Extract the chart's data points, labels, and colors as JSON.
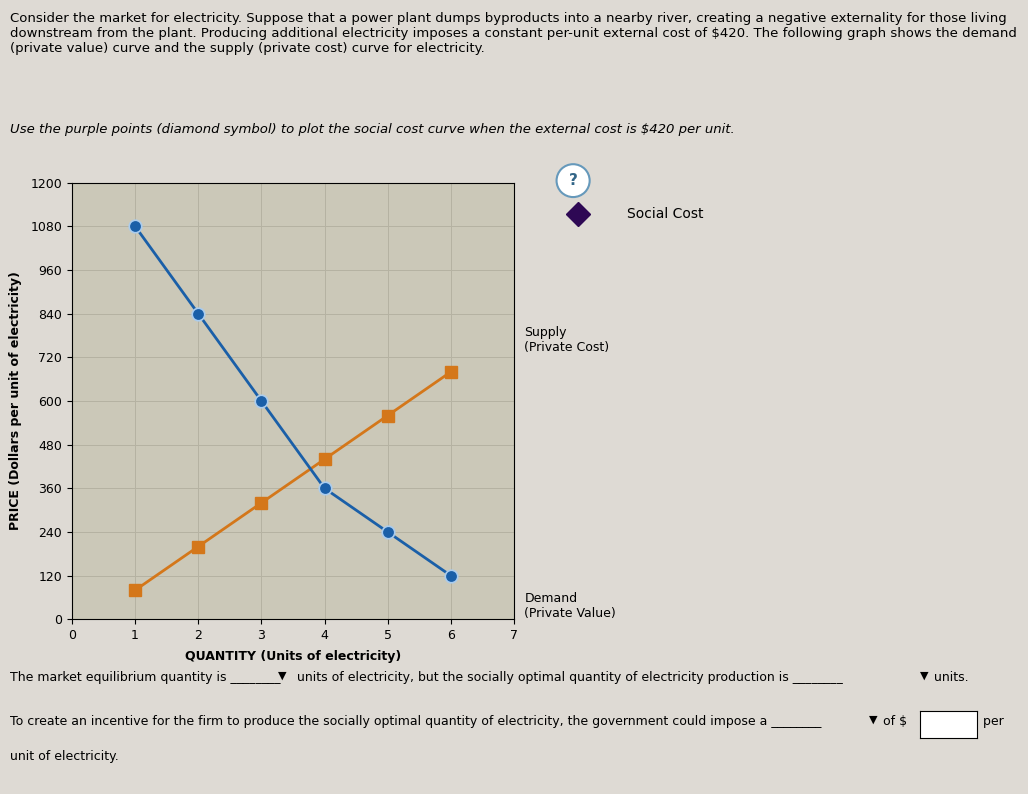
{
  "title_text": "Consider the market for electricity. Suppose that a power plant dumps byproducts into a nearby river, creating a negative externality for those living\ndownstream from the plant. Producing additional electricity imposes a constant per-unit external cost of $420. The following graph shows the demand\n(private value) curve and the supply (private cost) curve for electricity.",
  "subtitle_text": "Use the purple points (diamond symbol) to plot the social cost curve when the external cost is $420 per unit.",
  "xlabel": "QUANTITY (Units of electricity)",
  "ylabel": "PRICE (Dollars per unit of electricity)",
  "xlim": [
    0,
    7
  ],
  "ylim": [
    0,
    1200
  ],
  "xticks": [
    0,
    1,
    2,
    3,
    4,
    5,
    6,
    7
  ],
  "yticks": [
    0,
    120,
    240,
    360,
    480,
    600,
    720,
    840,
    960,
    1080,
    1200
  ],
  "demand_x": [
    1,
    2,
    3,
    4,
    5,
    6
  ],
  "demand_y": [
    1080,
    840,
    600,
    360,
    240,
    120
  ],
  "supply_x": [
    1,
    2,
    3,
    4,
    5,
    6
  ],
  "supply_y": [
    80,
    200,
    320,
    440,
    560,
    680
  ],
  "demand_color": "#1a5fa8",
  "supply_color": "#d4771a",
  "social_cost_color": "#2e0854",
  "demand_marker": "o",
  "supply_marker": "s",
  "social_cost_marker": "D",
  "demand_label": "Demand\n(Private Value)",
  "supply_label": "Supply\n(Private Cost)",
  "social_cost_label": "Social Cost",
  "bg_color": "#dedad4",
  "plot_bg_color": "#cbc8b8",
  "grid_color": "#b5b2a2",
  "title_fontsize": 9.5,
  "subtitle_fontsize": 9.5,
  "axis_label_fontsize": 9,
  "tick_fontsize": 9,
  "annotation_fontsize": 9
}
